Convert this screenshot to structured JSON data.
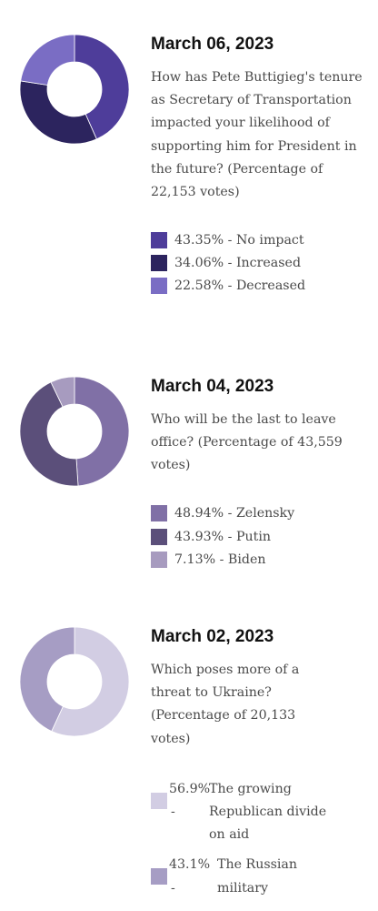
{
  "chart_data": [
    {
      "type": "pie",
      "title": "March 06, 2023",
      "question": "How has Pete Buttigieg's tenure as Secretary of Transportation impacted your likelihood of supporting him for President in the future? (Percentage of 22,153 votes)",
      "categories": [
        "No impact",
        "Increased",
        "Decreased"
      ],
      "values": [
        43.35,
        34.06,
        22.58
      ],
      "value_labels": [
        "43.35%",
        "34.06%",
        "22.58%"
      ],
      "colors": [
        "#4e3d9a",
        "#2c245e",
        "#7a6dc4"
      ],
      "hole_ratio": 0.5,
      "legend_position": "right"
    },
    {
      "type": "pie",
      "title": "March 04, 2023",
      "question": "Who will be the last to leave office? (Percentage of 43,559 votes)",
      "categories": [
        "Zelensky",
        "Putin",
        "Biden"
      ],
      "values": [
        48.94,
        43.93,
        7.13
      ],
      "value_labels": [
        "48.94%",
        "43.93%",
        "7.13%"
      ],
      "colors": [
        "#8070a6",
        "#5b4f7a",
        "#a79bbf"
      ],
      "hole_ratio": 0.5,
      "legend_position": "right"
    },
    {
      "type": "pie",
      "title": "March 02, 2023",
      "question": "Which poses more of a threat to Ukraine? (Percentage of 20,133 votes)",
      "categories": [
        "The growing Republican divide on aid",
        "The Russian military"
      ],
      "values": [
        56.9,
        43.1
      ],
      "value_labels": [
        "56.9%",
        "43.1%"
      ],
      "colors": [
        "#d2cde3",
        "#a69dc4"
      ],
      "hole_ratio": 0.5,
      "legend_position": "right"
    }
  ]
}
